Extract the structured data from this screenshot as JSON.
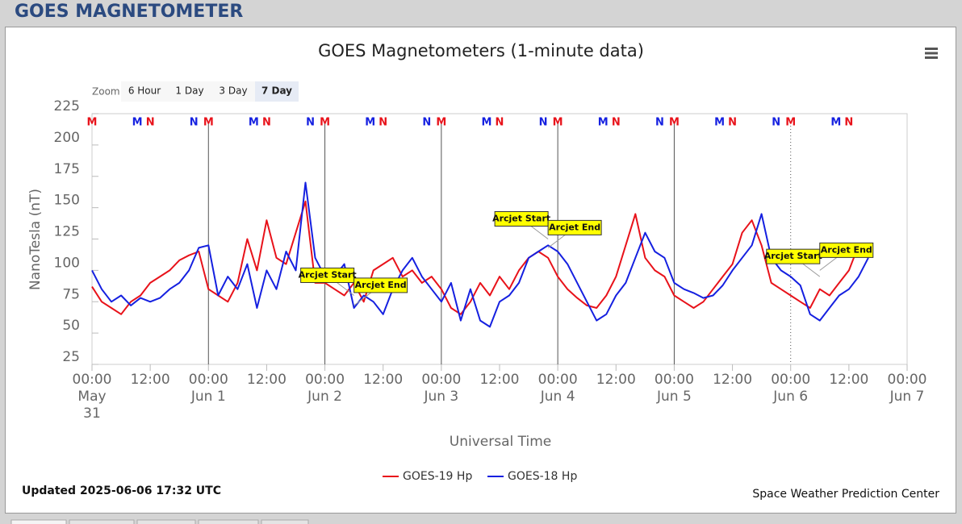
{
  "header": {
    "title": "GOES MAGNETOMETER"
  },
  "chart_data": {
    "type": "line",
    "title": "GOES Magnetometers (1-minute data)",
    "x_axis_label": "Universal Time",
    "y_axis_label": "NanoTesla (nT)",
    "zoom": {
      "label": "Zoom",
      "buttons": [
        "6 Hour",
        "1 Day",
        "3 Day",
        "7 Day"
      ],
      "selected": 3
    },
    "xlim": [
      "05-31 00:00",
      "06-07 00:00"
    ],
    "xticks": [
      {
        "value": "05-31 00:00",
        "label": "00:00"
      },
      {
        "value": "05-31 12:00",
        "label": "12:00"
      },
      {
        "value": "06-01 00:00",
        "label": "00:00"
      },
      {
        "value": "06-01 12:00",
        "label": "12:00"
      },
      {
        "value": "06-02 00:00",
        "label": "00:00"
      },
      {
        "value": "06-02 12:00",
        "label": "12:00"
      },
      {
        "value": "06-03 00:00",
        "label": "00:00"
      },
      {
        "value": "06-03 12:00",
        "label": "12:00"
      },
      {
        "value": "06-04 00:00",
        "label": "00:00"
      },
      {
        "value": "06-04 12:00",
        "label": "12:00"
      },
      {
        "value": "06-05 00:00",
        "label": "00:00"
      },
      {
        "value": "06-05 12:00",
        "label": "12:00"
      },
      {
        "value": "06-06 00:00",
        "label": "00:00"
      },
      {
        "value": "06-06 12:00",
        "label": "12:00"
      },
      {
        "value": "06-07 00:00",
        "label": "00:00"
      }
    ],
    "x_day_labels": [
      {
        "value": "05-31 00:00",
        "label": "May 31"
      },
      {
        "value": "06-01 00:00",
        "label": "Jun 1"
      },
      {
        "value": "06-02 00:00",
        "label": "Jun 2"
      },
      {
        "value": "06-03 00:00",
        "label": "Jun 3"
      },
      {
        "value": "06-04 00:00",
        "label": "Jun 4"
      },
      {
        "value": "06-05 00:00",
        "label": "Jun 5"
      },
      {
        "value": "06-06 00:00",
        "label": "Jun 6"
      },
      {
        "value": "06-07 00:00",
        "label": "Jun 7"
      }
    ],
    "ylim": [
      25,
      225
    ],
    "yticks": [
      25,
      50,
      75,
      100,
      125,
      150,
      175,
      200,
      225
    ],
    "grid": false,
    "x": [
      "05-31 00:00",
      "05-31 02:00",
      "05-31 04:00",
      "05-31 06:00",
      "05-31 08:00",
      "05-31 10:00",
      "05-31 12:00",
      "05-31 14:00",
      "05-31 16:00",
      "05-31 18:00",
      "05-31 20:00",
      "05-31 22:00",
      "06-01 00:00",
      "06-01 02:00",
      "06-01 04:00",
      "06-01 06:00",
      "06-01 08:00",
      "06-01 10:00",
      "06-01 12:00",
      "06-01 14:00",
      "06-01 16:00",
      "06-01 18:00",
      "06-01 20:00",
      "06-01 22:00",
      "06-02 00:00",
      "06-02 02:00",
      "06-02 04:00",
      "06-02 06:00",
      "06-02 08:00",
      "06-02 10:00",
      "06-02 12:00",
      "06-02 14:00",
      "06-02 16:00",
      "06-02 18:00",
      "06-02 20:00",
      "06-02 22:00",
      "06-03 00:00",
      "06-03 02:00",
      "06-03 04:00",
      "06-03 06:00",
      "06-03 08:00",
      "06-03 10:00",
      "06-03 12:00",
      "06-03 14:00",
      "06-03 16:00",
      "06-03 18:00",
      "06-03 20:00",
      "06-03 22:00",
      "06-04 00:00",
      "06-04 02:00",
      "06-04 04:00",
      "06-04 06:00",
      "06-04 08:00",
      "06-04 10:00",
      "06-04 12:00",
      "06-04 14:00",
      "06-04 16:00",
      "06-04 18:00",
      "06-04 20:00",
      "06-04 22:00",
      "06-05 00:00",
      "06-05 02:00",
      "06-05 04:00",
      "06-05 06:00",
      "06-05 08:00",
      "06-05 10:00",
      "06-05 12:00",
      "06-05 14:00",
      "06-05 16:00",
      "06-05 18:00",
      "06-05 20:00",
      "06-05 22:00",
      "06-06 00:00",
      "06-06 02:00",
      "06-06 04:00",
      "06-06 06:00",
      "06-06 08:00",
      "06-06 10:00",
      "06-06 12:00",
      "06-06 14:00",
      "06-06 16:00"
    ],
    "series": [
      {
        "name": "GOES-19 Hp",
        "color": "#e8121a",
        "values": [
          87,
          75,
          70,
          65,
          75,
          80,
          90,
          95,
          100,
          108,
          112,
          115,
          85,
          80,
          75,
          90,
          125,
          100,
          140,
          110,
          105,
          130,
          155,
          90,
          90,
          85,
          80,
          90,
          75,
          100,
          105,
          110,
          95,
          100,
          90,
          95,
          85,
          70,
          65,
          75,
          90,
          80,
          95,
          85,
          100,
          110,
          115,
          110,
          95,
          85,
          78,
          72,
          70,
          80,
          95,
          120,
          145,
          110,
          100,
          95,
          80,
          75,
          70,
          75,
          85,
          95,
          105,
          130,
          140,
          120,
          90,
          85,
          80,
          75,
          70,
          85,
          80,
          90,
          100,
          120,
          115
        ],
        "midnight": [
          "05-31 00:00",
          "06-01 00:00",
          "06-02 00:00",
          "06-03 00:00",
          "06-04 00:00",
          "06-05 00:00",
          "06-06 00:00"
        ],
        "noon": [
          "05-31 12:00",
          "06-01 12:00",
          "06-02 12:00",
          "06-03 12:00",
          "06-04 12:00",
          "06-05 12:00",
          "06-06 12:00"
        ]
      },
      {
        "name": "GOES-18 Hp",
        "color": "#1520e0",
        "values": [
          100,
          85,
          75,
          80,
          72,
          78,
          75,
          78,
          85,
          90,
          100,
          118,
          120,
          80,
          95,
          85,
          105,
          70,
          100,
          85,
          115,
          100,
          170,
          110,
          95,
          95,
          105,
          70,
          80,
          75,
          65,
          85,
          100,
          110,
          95,
          85,
          75,
          90,
          60,
          85,
          60,
          55,
          75,
          80,
          90,
          110,
          115,
          120,
          115,
          105,
          90,
          75,
          60,
          65,
          80,
          90,
          110,
          130,
          115,
          110,
          90,
          85,
          82,
          78,
          80,
          88,
          100,
          110,
          120,
          145,
          110,
          100,
          95,
          88,
          65,
          60,
          70,
          80,
          85,
          95,
          110
        ],
        "midnight": [
          "05-31 09:20",
          "06-01 09:20",
          "06-02 09:20",
          "06-03 09:20",
          "06-04 09:20",
          "06-05 09:20",
          "06-06 09:20"
        ],
        "noon": [
          "05-31 21:00",
          "06-01 21:00",
          "06-02 21:00",
          "06-03 21:00",
          "06-04 21:00",
          "06-05 21:00"
        ]
      }
    ],
    "marker_labels": {
      "midnight": "M",
      "noon": "N"
    },
    "annotations": [
      {
        "text": "Arcjet Start",
        "x": "06-02 06:00",
        "y": 80
      },
      {
        "text": "Arcjet End",
        "x": "06-02 06:00",
        "y": 72
      },
      {
        "text": "Arcjet Start",
        "x": "06-03 22:00",
        "y": 125
      },
      {
        "text": "Arcjet End",
        "x": "06-03 22:00",
        "y": 118
      },
      {
        "text": "Arcjet Start",
        "x": "06-06 06:00",
        "y": 95
      },
      {
        "text": "Arcjet End",
        "x": "06-06 06:00",
        "y": 100
      }
    ],
    "updated": "Updated 2025-06-06 17:32 UTC",
    "credit": "Space Weather Prediction Center"
  }
}
